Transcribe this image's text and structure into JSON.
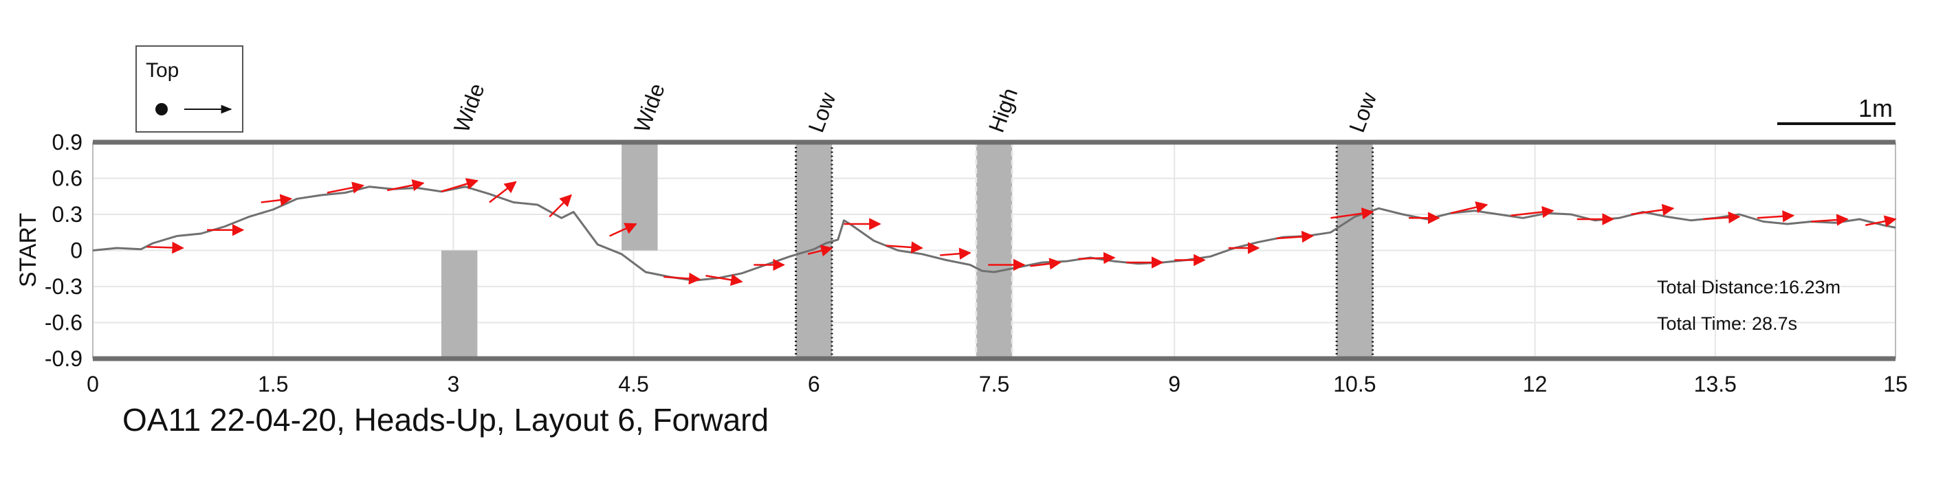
{
  "chart_data": {
    "type": "line",
    "caption": "OA11 22-04-20, Heads-Up, Layout 6, Forward",
    "ylabel": "START",
    "xlabel": "",
    "xlim": [
      0,
      15
    ],
    "ylim": [
      -0.9,
      0.9
    ],
    "xticks": [
      "0",
      "1.5",
      "3",
      "4.5",
      "6",
      "7.5",
      "9",
      "10.5",
      "12",
      "13.5",
      "15"
    ],
    "yticks": [
      "0.9",
      "0.6",
      "0.3",
      "0",
      "-0.3",
      "-0.6",
      "-0.9"
    ],
    "grid": true,
    "legend": {
      "title": "Top",
      "placement": "top-left"
    },
    "scale_bar": {
      "label": "1m",
      "length_m": 1
    },
    "stats": {
      "distance": "Total Distance:16.23m",
      "time": "Total Time: 28.7s"
    },
    "obstacles": [
      {
        "label": "Wide",
        "x_start": 2.9,
        "x_end": 3.2,
        "y_start": -0.9,
        "y_end": 0.0,
        "style": "solid"
      },
      {
        "label": "Wide",
        "x_start": 4.4,
        "x_end": 4.7,
        "y_start": 0.0,
        "y_end": 0.9,
        "style": "solid"
      },
      {
        "label": "Low",
        "x_start": 5.85,
        "x_end": 6.15,
        "y_start": -0.9,
        "y_end": 0.9,
        "style": "dotted"
      },
      {
        "label": "High",
        "x_start": 7.35,
        "x_end": 7.65,
        "y_start": -0.9,
        "y_end": 0.9,
        "style": "dashed"
      },
      {
        "label": "Low",
        "x_start": 10.35,
        "x_end": 10.65,
        "y_start": -0.9,
        "y_end": 0.9,
        "style": "dotted"
      }
    ],
    "series": [
      {
        "x": [
          0.0,
          0.2,
          0.4,
          0.5,
          0.7,
          0.9,
          1.1,
          1.3,
          1.5,
          1.7,
          1.9,
          2.1,
          2.3,
          2.5,
          2.7,
          2.9,
          3.1,
          3.3,
          3.5,
          3.7,
          3.9,
          4.0,
          4.2,
          4.4,
          4.6,
          4.8,
          5.0,
          5.2,
          5.4,
          5.6,
          5.8,
          6.0,
          6.1,
          6.2,
          6.25,
          6.3,
          6.5,
          6.7,
          6.9,
          7.1,
          7.3,
          7.4,
          7.5,
          7.7,
          7.9,
          8.1,
          8.3,
          8.5,
          8.7,
          8.9,
          9.1,
          9.3,
          9.5,
          9.7,
          9.9,
          10.1,
          10.3,
          10.5,
          10.7,
          10.9,
          11.1,
          11.3,
          11.5,
          11.7,
          11.9,
          12.1,
          12.3,
          12.5,
          12.7,
          12.9,
          13.1,
          13.3,
          13.5,
          13.7,
          13.9,
          14.1,
          14.3,
          14.5,
          14.7,
          14.9,
          15.0
        ],
        "y": [
          0.0,
          0.02,
          0.01,
          0.06,
          0.12,
          0.14,
          0.2,
          0.28,
          0.34,
          0.43,
          0.46,
          0.48,
          0.53,
          0.51,
          0.52,
          0.49,
          0.53,
          0.47,
          0.4,
          0.38,
          0.27,
          0.32,
          0.05,
          -0.03,
          -0.18,
          -0.22,
          -0.25,
          -0.23,
          -0.19,
          -0.12,
          -0.05,
          0.01,
          0.06,
          0.09,
          0.25,
          0.22,
          0.08,
          0.0,
          -0.03,
          -0.08,
          -0.12,
          -0.17,
          -0.18,
          -0.14,
          -0.1,
          -0.09,
          -0.06,
          -0.09,
          -0.11,
          -0.1,
          -0.08,
          -0.05,
          0.02,
          0.07,
          0.11,
          0.12,
          0.15,
          0.28,
          0.35,
          0.3,
          0.26,
          0.31,
          0.33,
          0.3,
          0.27,
          0.31,
          0.3,
          0.25,
          0.27,
          0.32,
          0.28,
          0.25,
          0.27,
          0.3,
          0.24,
          0.22,
          0.24,
          0.23,
          0.26,
          0.21,
          0.19
        ]
      }
    ],
    "heading_arrows": [
      {
        "x": 0.45,
        "y": 0.03,
        "dx": 0.3,
        "dy": -0.01
      },
      {
        "x": 0.95,
        "y": 0.17,
        "dx": 0.3,
        "dy": 0.0
      },
      {
        "x": 1.4,
        "y": 0.4,
        "dx": 0.25,
        "dy": 0.03
      },
      {
        "x": 1.95,
        "y": 0.48,
        "dx": 0.3,
        "dy": 0.06
      },
      {
        "x": 2.45,
        "y": 0.5,
        "dx": 0.3,
        "dy": 0.06
      },
      {
        "x": 2.9,
        "y": 0.49,
        "dx": 0.3,
        "dy": 0.09
      },
      {
        "x": 3.3,
        "y": 0.4,
        "dx": 0.22,
        "dy": 0.17
      },
      {
        "x": 3.8,
        "y": 0.28,
        "dx": 0.18,
        "dy": 0.18
      },
      {
        "x": 4.3,
        "y": 0.12,
        "dx": 0.22,
        "dy": 0.1
      },
      {
        "x": 4.75,
        "y": -0.22,
        "dx": 0.3,
        "dy": -0.02
      },
      {
        "x": 5.1,
        "y": -0.21,
        "dx": 0.3,
        "dy": -0.05
      },
      {
        "x": 5.5,
        "y": -0.12,
        "dx": 0.25,
        "dy": 0.0
      },
      {
        "x": 5.95,
        "y": -0.03,
        "dx": 0.2,
        "dy": 0.05
      },
      {
        "x": 6.25,
        "y": 0.22,
        "dx": 0.3,
        "dy": 0.0
      },
      {
        "x": 6.6,
        "y": 0.04,
        "dx": 0.3,
        "dy": -0.02
      },
      {
        "x": 7.05,
        "y": -0.04,
        "dx": 0.25,
        "dy": 0.02
      },
      {
        "x": 7.45,
        "y": -0.12,
        "dx": 0.3,
        "dy": 0.0
      },
      {
        "x": 7.8,
        "y": -0.13,
        "dx": 0.25,
        "dy": 0.03
      },
      {
        "x": 8.2,
        "y": -0.07,
        "dx": 0.3,
        "dy": 0.01
      },
      {
        "x": 8.6,
        "y": -0.1,
        "dx": 0.3,
        "dy": 0.0
      },
      {
        "x": 9.0,
        "y": -0.08,
        "dx": 0.25,
        "dy": 0.0
      },
      {
        "x": 9.45,
        "y": 0.02,
        "dx": 0.25,
        "dy": 0.0
      },
      {
        "x": 9.85,
        "y": 0.1,
        "dx": 0.3,
        "dy": 0.02
      },
      {
        "x": 10.3,
        "y": 0.27,
        "dx": 0.35,
        "dy": 0.05
      },
      {
        "x": 10.95,
        "y": 0.27,
        "dx": 0.25,
        "dy": 0.0
      },
      {
        "x": 11.3,
        "y": 0.31,
        "dx": 0.3,
        "dy": 0.07
      },
      {
        "x": 11.8,
        "y": 0.29,
        "dx": 0.35,
        "dy": 0.04
      },
      {
        "x": 12.35,
        "y": 0.26,
        "dx": 0.3,
        "dy": 0.0
      },
      {
        "x": 12.8,
        "y": 0.3,
        "dx": 0.35,
        "dy": 0.05
      },
      {
        "x": 13.4,
        "y": 0.26,
        "dx": 0.3,
        "dy": 0.02
      },
      {
        "x": 13.85,
        "y": 0.27,
        "dx": 0.3,
        "dy": 0.02
      },
      {
        "x": 14.3,
        "y": 0.24,
        "dx": 0.3,
        "dy": 0.02
      },
      {
        "x": 14.75,
        "y": 0.21,
        "dx": 0.25,
        "dy": 0.05
      }
    ],
    "colors": {
      "trajectory": "#707070",
      "arrow": "#ee1111",
      "obstacle": "#b3b3b3",
      "boundary": "#6e6e6e",
      "grid": "#e6e6e6"
    }
  }
}
